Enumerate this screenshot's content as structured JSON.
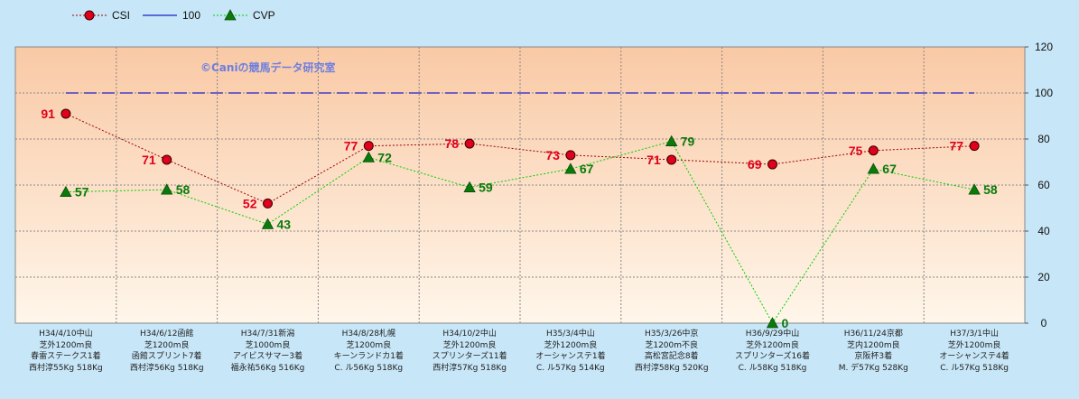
{
  "colors": {
    "csi": "#e0001b",
    "csi_line": "#a00000",
    "cvp": "#0b7a0b",
    "cvp_line": "#00d000",
    "ref": "#2020c8",
    "plot_bg_top": "#f9c9a5",
    "plot_bg_bottom": "#fff6ea",
    "outer_bg": "#c7e6f7"
  },
  "watermark": "©Caniの競馬データ研究室",
  "chart_data": {
    "type": "line",
    "legend_placement": "top-left",
    "grid": true,
    "ylim": [
      0,
      120
    ],
    "yticks": [
      0,
      20,
      40,
      60,
      80,
      100,
      120
    ],
    "categories": [
      [
        "H34/4/10中山",
        "芝外1200m良",
        "春雷ステークス1着",
        "西村淳55Kg 518Kg"
      ],
      [
        "H34/6/12函館",
        "芝1200m良",
        "函館スプリント7着",
        "西村淳56Kg 518Kg"
      ],
      [
        "H34/7/31新潟",
        "芝1000m良",
        "アイビスサマー3着",
        "福永祐56Kg 516Kg"
      ],
      [
        "H34/8/28札幌",
        "芝1200m良",
        "キーンランドカ1着",
        "C. ル56Kg 518Kg"
      ],
      [
        "H34/10/2中山",
        "芝外1200m良",
        "スプリンターズ11着",
        "西村淳57Kg 518Kg"
      ],
      [
        "H35/3/4中山",
        "芝外1200m良",
        "オーシャンステ1着",
        "C. ル57Kg 514Kg"
      ],
      [
        "H35/3/26中京",
        "芝1200m不良",
        "高松宮記念8着",
        "西村淳58Kg 520Kg"
      ],
      [
        "H36/9/29中山",
        "芝外1200m良",
        "スプリンターズ16着",
        "C. ル58Kg 518Kg"
      ],
      [
        "H36/11/24京都",
        "芝内1200m良",
        "京阪杯3着",
        "M. デ57Kg 528Kg"
      ],
      [
        "H37/3/1中山",
        "芝外1200m良",
        "オーシャンステ4着",
        "C. ル57Kg 518Kg"
      ]
    ],
    "series": [
      {
        "name": "CSI",
        "values": [
          91,
          71,
          52,
          77,
          78,
          73,
          71,
          69,
          75,
          77
        ],
        "labels": [
          "91",
          "71",
          "52",
          "77",
          "78",
          "73",
          "71",
          "69",
          "75",
          "77"
        ]
      },
      {
        "name": "100",
        "values": [
          100,
          100,
          100,
          100,
          100,
          100,
          100,
          100,
          100,
          100
        ]
      },
      {
        "name": "CVP",
        "values": [
          57,
          58,
          43,
          72,
          59,
          67,
          79,
          0,
          67,
          58
        ],
        "labels": [
          "57",
          "58",
          "43",
          "72",
          "59",
          "67",
          "79",
          "0",
          "67",
          "58"
        ]
      }
    ]
  }
}
